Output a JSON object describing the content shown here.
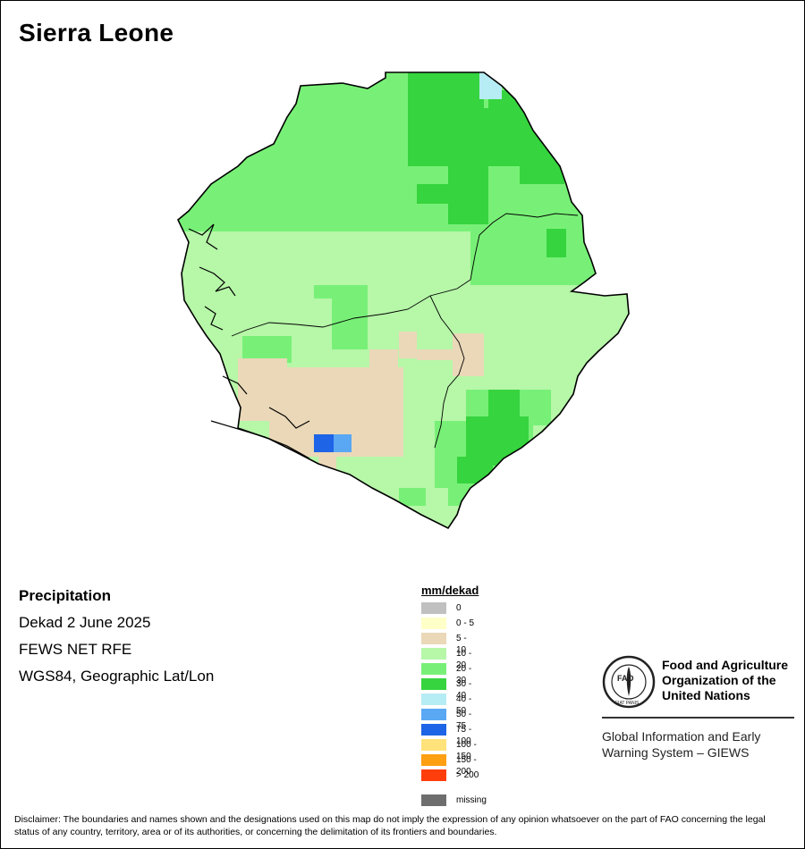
{
  "map": {
    "title": "Sierra Leone",
    "variable": "Precipitation",
    "period": "Dekad 2 June 2025",
    "source": "FEWS NET RFE",
    "projection": "WGS84, Geographic Lat/Lon"
  },
  "legend": {
    "unit": "mm/dekad",
    "classes": [
      {
        "label": "0",
        "color": "#c0c0c0"
      },
      {
        "label": "0 - 5",
        "color": "#ffffc8"
      },
      {
        "label": "5 - 10",
        "color": "#ead8b8"
      },
      {
        "label": "10 - 20",
        "color": "#b6f7a8"
      },
      {
        "label": "20 - 30",
        "color": "#78f077"
      },
      {
        "label": "30 - 40",
        "color": "#36d43f"
      },
      {
        "label": "40 - 50",
        "color": "#b6ecf4"
      },
      {
        "label": "50 - 75",
        "color": "#5aa8f3"
      },
      {
        "label": "75 - 100",
        "color": "#1e64e6"
      },
      {
        "label": "100 - 150",
        "color": "#ffe27a"
      },
      {
        "label": "150 - 200",
        "color": "#ff9f12"
      },
      {
        "label": "> 200",
        "color": "#ff3e0c"
      }
    ],
    "missing": {
      "label": "missing",
      "color": "#6e6e6e"
    }
  },
  "org": {
    "line1": "Food and Agriculture",
    "line2": "Organization of the",
    "line3": "United Nations",
    "logo_text": "FAO",
    "logo_motto": "FIAT PANIS",
    "system1": "Global Information and Early",
    "system2": "Warning System – GIEWS"
  },
  "disclaimer": "Disclaimer: The boundaries and names shown and the designations used on this map do not imply the expression of any opinion whatsoever on the part of FAO concerning the legal status of any country, territory, area or of its authorities, or concerning the delimitation of its frontiers and boundaries."
}
